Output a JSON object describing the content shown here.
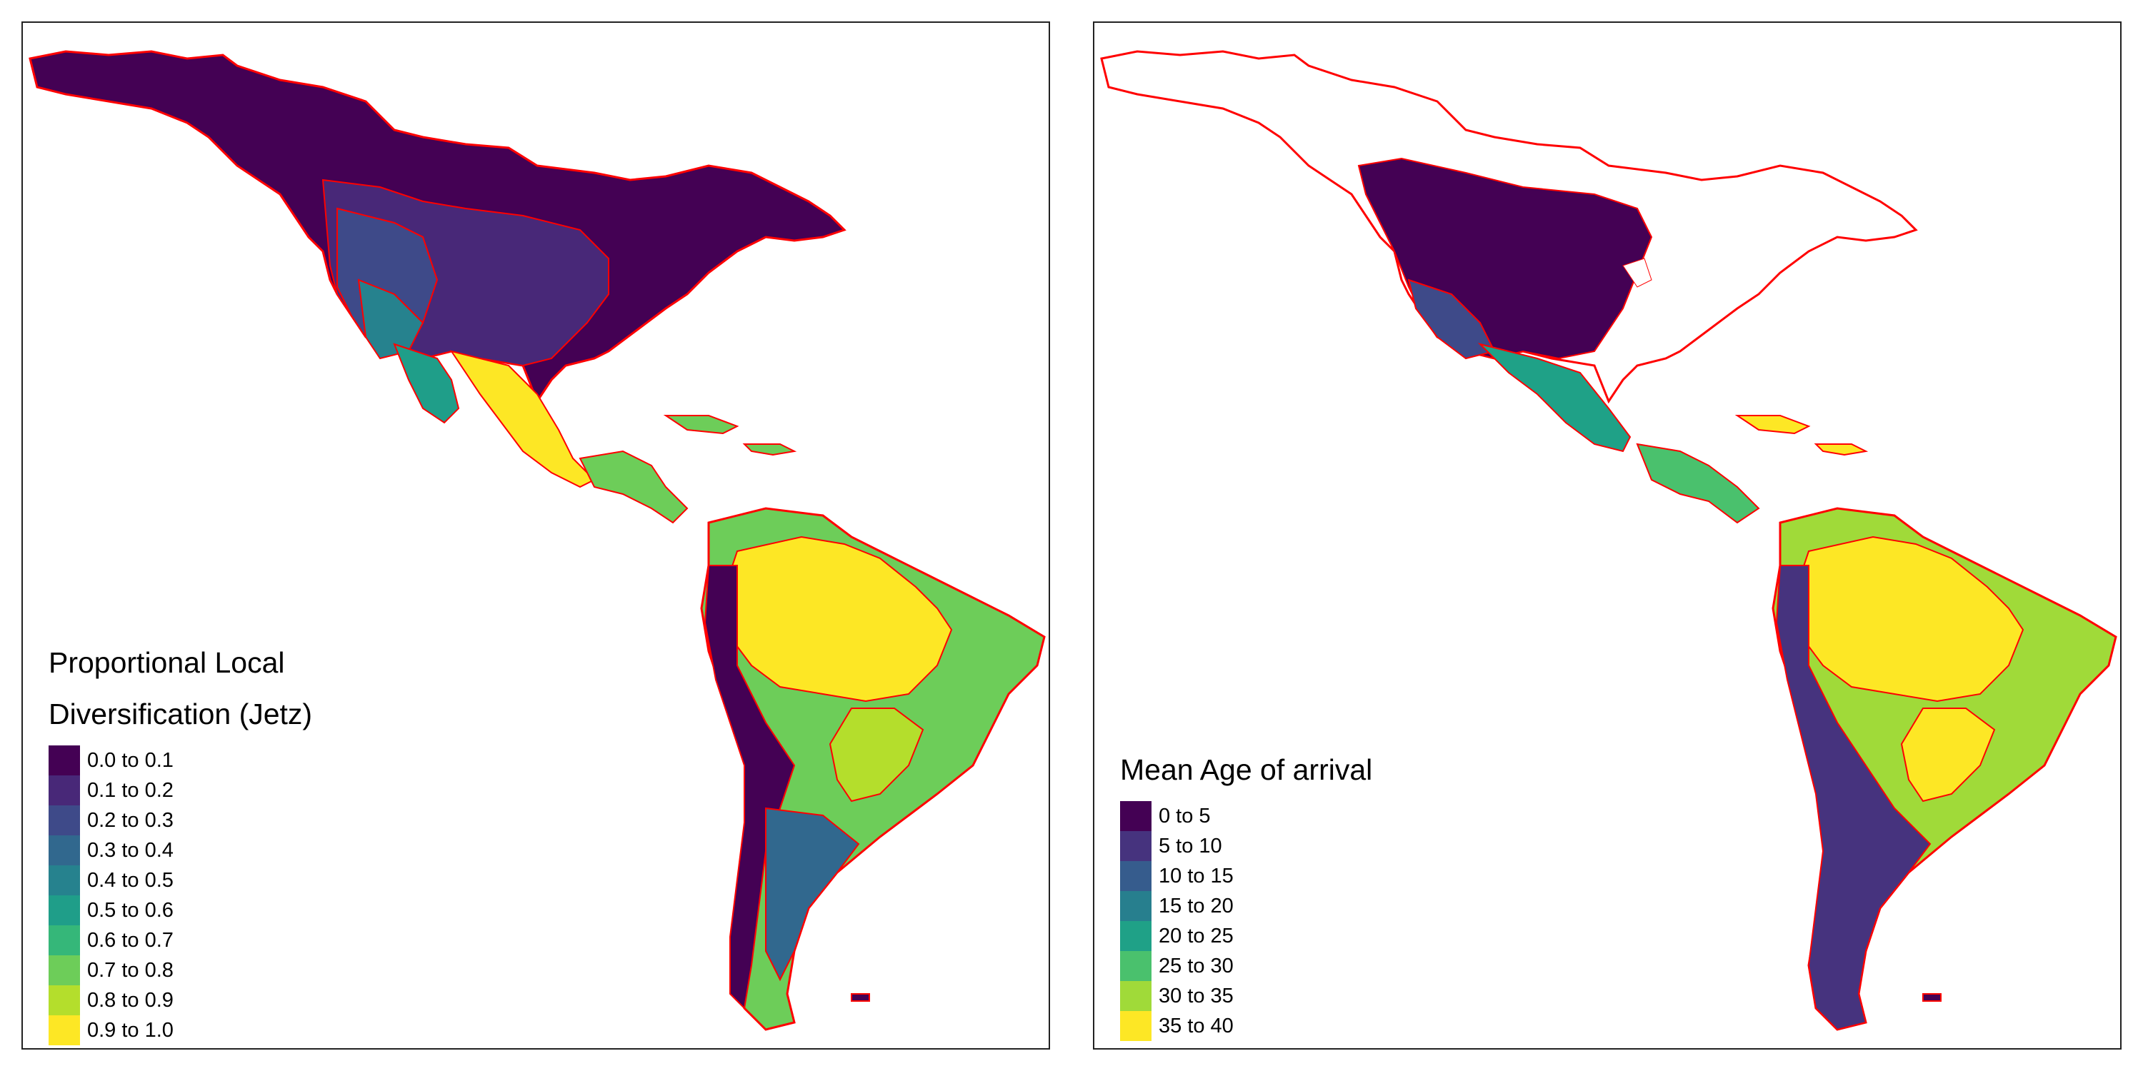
{
  "panels": [
    {
      "id": "jetz",
      "legend_title_lines": [
        "Proportional Local",
        "Diversification (Jetz)"
      ],
      "legend": [
        {
          "label": "0.0 to 0.1",
          "color": "#440154"
        },
        {
          "label": "0.1 to 0.2",
          "color": "#482878"
        },
        {
          "label": "0.2 to 0.3",
          "color": "#3E4A89"
        },
        {
          "label": "0.3 to 0.4",
          "color": "#31688E"
        },
        {
          "label": "0.4 to 0.5",
          "color": "#26828E"
        },
        {
          "label": "0.5 to 0.6",
          "color": "#1F9E89"
        },
        {
          "label": "0.6 to 0.7",
          "color": "#35B779"
        },
        {
          "label": "0.7 to 0.8",
          "color": "#6DCD59"
        },
        {
          "label": "0.8 to 0.9",
          "color": "#B4DE2C"
        },
        {
          "label": "0.9 to 1.0",
          "color": "#FDE725"
        }
      ]
    },
    {
      "id": "arrival",
      "legend_title_lines": [
        "Mean Age of arrival"
      ],
      "legend": [
        {
          "label": "0 to 5",
          "color": "#440154"
        },
        {
          "label": "5 to 10",
          "color": "#46337E"
        },
        {
          "label": "10 to 15",
          "color": "#365C8D"
        },
        {
          "label": "15 to 20",
          "color": "#277F8E"
        },
        {
          "label": "20 to 25",
          "color": "#1FA187"
        },
        {
          "label": "25 to 30",
          "color": "#4AC16D"
        },
        {
          "label": "30 to 35",
          "color": "#A0DA39"
        },
        {
          "label": "35 to 40",
          "color": "#FDE725"
        }
      ]
    }
  ],
  "boundary_color": "#FF0000"
}
